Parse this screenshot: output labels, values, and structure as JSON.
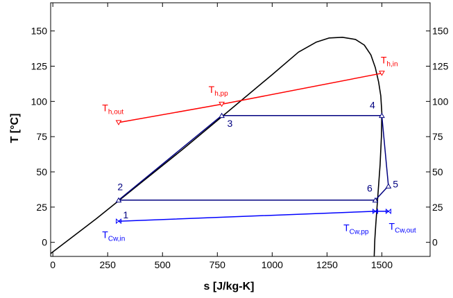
{
  "chart_data": {
    "type": "line",
    "xlabel": "s [J/kg-K]",
    "ylabel": "T [°C]",
    "xlim": [
      -10,
      1720
    ],
    "ylim": [
      -10,
      170
    ],
    "x_ticks": [
      0,
      250,
      500,
      750,
      1000,
      1250,
      1500
    ],
    "y_ticks": [
      0,
      25,
      50,
      75,
      100,
      125,
      150
    ],
    "grid": false,
    "colors": {
      "dome": "#000000",
      "hot": "#ff0000",
      "cycle": "#000080",
      "cooling": "#0000ff"
    },
    "series": [
      {
        "key": "dome",
        "x": [
          -10,
          200,
          400,
          600,
          800,
          1000,
          1120,
          1200,
          1260,
          1320,
          1380,
          1420,
          1450,
          1470,
          1485,
          1495,
          1500,
          1498,
          1492,
          1485,
          1478,
          1472,
          1468,
          1466,
          1465
        ],
        "y": [
          -8,
          17,
          42,
          67,
          93,
          119,
          135,
          142,
          145,
          145.5,
          144,
          140,
          133,
          124,
          114,
          104,
          92,
          75,
          55,
          40,
          25,
          12,
          2,
          -6,
          -10
        ]
      },
      {
        "key": "hot",
        "x": [
          300,
          770,
          1500
        ],
        "y": [
          85,
          98,
          120
        ]
      },
      {
        "key": "cycle",
        "x": [
          300,
          770,
          1500,
          1530,
          1470,
          300
        ],
        "y": [
          30,
          90,
          90,
          40,
          30,
          30
        ]
      },
      {
        "key": "cooling",
        "x": [
          300,
          1470,
          1530
        ],
        "y": [
          15,
          22,
          22
        ]
      }
    ],
    "state_labels": [
      {
        "text": "1",
        "x": 320,
        "y": 17,
        "color": "#000080"
      },
      {
        "text": "2",
        "x": 295,
        "y": 37,
        "color": "#000080"
      },
      {
        "text": "3",
        "x": 795,
        "y": 82,
        "color": "#000080"
      },
      {
        "text": "4",
        "x": 1445,
        "y": 95,
        "color": "#000080"
      },
      {
        "text": "5",
        "x": 1550,
        "y": 39,
        "color": "#000080"
      },
      {
        "text": "6",
        "x": 1432,
        "y": 36,
        "color": "#000080"
      }
    ],
    "stream_labels": [
      {
        "main": "T",
        "sub": "h,out",
        "x": 225,
        "y": 93,
        "color": "#ff0000"
      },
      {
        "main": "T",
        "sub": "h,pp",
        "x": 710,
        "y": 106,
        "color": "#ff0000"
      },
      {
        "main": "T",
        "sub": "h,in",
        "x": 1495,
        "y": 127,
        "color": "#ff0000"
      },
      {
        "main": "T",
        "sub": "Cw,in",
        "x": 225,
        "y": 3,
        "color": "#0000ff"
      },
      {
        "main": "T",
        "sub": "Cw,pp",
        "x": 1325,
        "y": 8,
        "color": "#0000ff"
      },
      {
        "main": "T",
        "sub": "Cw,out",
        "x": 1532,
        "y": 9,
        "color": "#0000ff"
      }
    ]
  }
}
